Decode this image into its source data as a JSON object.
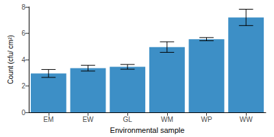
{
  "chart_data": {
    "type": "bar",
    "x_label": "Environmental sample",
    "y_label": "Count (cfu/ cm²)",
    "categories": [
      "EM",
      "EW",
      "GL",
      "WM",
      "WP",
      "WW"
    ],
    "values": [
      2.95,
      3.35,
      3.45,
      4.95,
      5.55,
      7.2
    ],
    "error": [
      0.3,
      0.22,
      0.18,
      0.4,
      0.12,
      0.62
    ],
    "color": "#3d8fc6",
    "ylim": [
      0,
      8
    ],
    "yticks": [
      0,
      2,
      4,
      6,
      8
    ],
    "grid": false
  }
}
